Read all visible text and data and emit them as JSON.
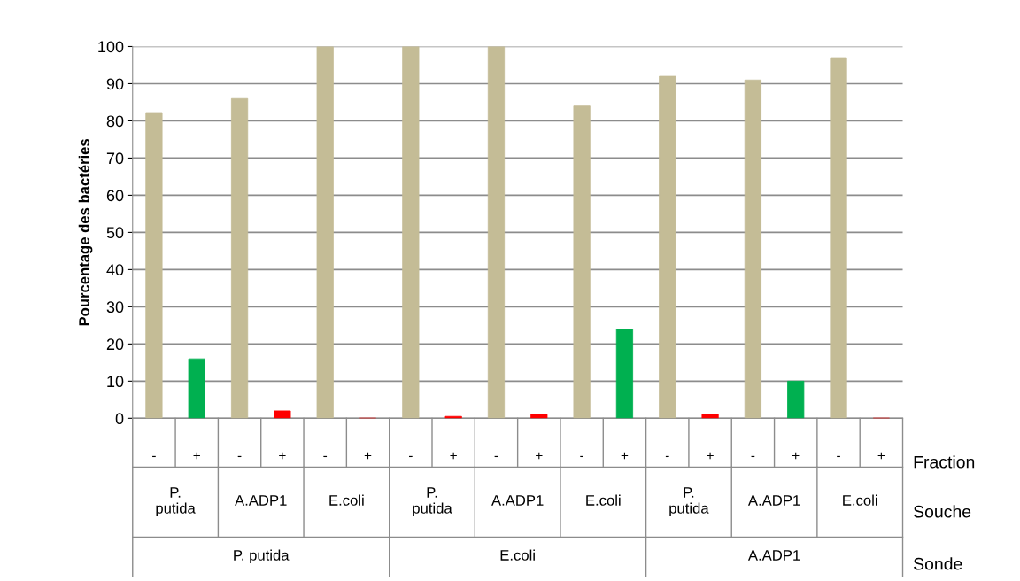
{
  "chart_data": {
    "type": "bar",
    "ylabel": "Pourcentage des bactéries",
    "categories": [
      "-",
      "+",
      "-",
      "+",
      "-",
      "+",
      "-",
      "+",
      "-",
      "+",
      "-",
      "+",
      "-",
      "+",
      "-",
      "+",
      "-",
      "+"
    ],
    "values": [
      82,
      16,
      86,
      2,
      100,
      0,
      100,
      0.5,
      100,
      1,
      84,
      24,
      92,
      1,
      91,
      10,
      97,
      0
    ],
    "colors": [
      "#c4bc96",
      "#00b050",
      "#c4bc96",
      "#ff0000",
      "#c4bc96",
      "#ff0000",
      "#c4bc96",
      "#ff0000",
      "#c4bc96",
      "#ff0000",
      "#c4bc96",
      "#00b050",
      "#c4bc96",
      "#ff0000",
      "#c4bc96",
      "#00b050",
      "#c4bc96",
      "#ff0000"
    ],
    "ylim": [
      0,
      100
    ],
    "yticks": [
      0,
      10,
      20,
      30,
      40,
      50,
      60,
      70,
      80,
      90,
      100
    ],
    "grid": "y",
    "annotations": [
      "P.\nputida",
      "A.ADP1",
      "E.coli",
      "P.\nputida",
      "A.ADP1",
      "E.coli",
      "P.\nputida",
      "A.ADP1",
      "E.coli",
      "P. putida",
      "E.coli",
      "A.ADP1",
      "Fraction",
      "Souche",
      "Sonde"
    ]
  }
}
